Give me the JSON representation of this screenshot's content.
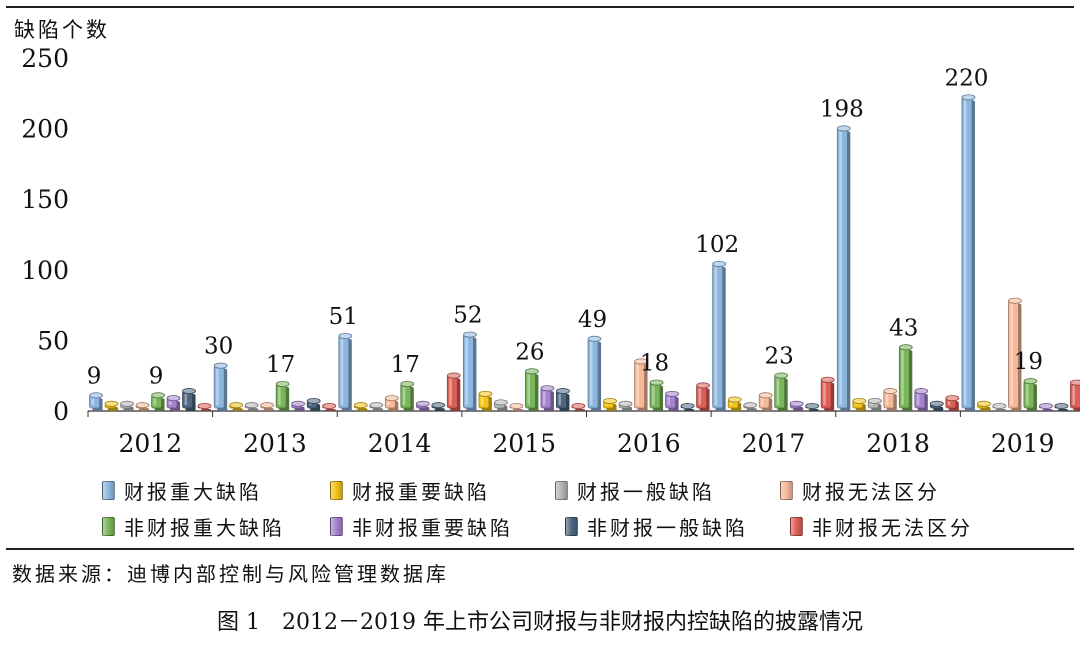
{
  "chart_data": {
    "type": "bar",
    "ylabel": "缺陷个数",
    "ylim": [
      0,
      250
    ],
    "yticks": [
      0,
      50,
      100,
      150,
      200,
      250
    ],
    "categories": [
      "2012",
      "2013",
      "2014",
      "2015",
      "2016",
      "2017",
      "2018",
      "2019"
    ],
    "series": [
      {
        "name": "财报重大缺陷",
        "color": "#8db6df",
        "values": [
          9,
          30,
          51,
          52,
          49,
          102,
          198,
          220
        ]
      },
      {
        "name": "财报重要缺陷",
        "color": "#f2c318",
        "values": [
          3,
          2,
          2,
          10,
          5,
          6,
          5,
          3
        ]
      },
      {
        "name": "财报一般缺陷",
        "color": "#b5b5b5",
        "values": [
          3,
          2,
          2,
          4,
          3,
          2,
          5,
          1
        ]
      },
      {
        "name": "财报无法区分",
        "color": "#f5b898",
        "values": [
          2,
          2,
          7,
          1,
          33,
          9,
          12,
          76
        ]
      },
      {
        "name": "非财报重大缺陷",
        "color": "#79b55a",
        "values": [
          9,
          17,
          17,
          26,
          18,
          23,
          43,
          19
        ]
      },
      {
        "name": "非财报重要缺陷",
        "color": "#a482cc",
        "values": [
          7,
          3,
          3,
          14,
          10,
          3,
          12,
          1
        ]
      },
      {
        "name": "非财报一般缺陷",
        "color": "#4f6680",
        "values": [
          12,
          5,
          2,
          12,
          1,
          1,
          3,
          1
        ]
      },
      {
        "name": "非财报无法区分",
        "color": "#dc5f57",
        "values": [
          1,
          1,
          23,
          1,
          16,
          20,
          7,
          18
        ]
      }
    ],
    "data_labels": [
      {
        "category": "2012",
        "series": "财报重大缺陷",
        "text": "9"
      },
      {
        "category": "2012",
        "series": "非财报重大缺陷",
        "text": "9"
      },
      {
        "category": "2013",
        "series": "财报重大缺陷",
        "text": "30"
      },
      {
        "category": "2013",
        "series": "非财报重大缺陷",
        "text": "17"
      },
      {
        "category": "2014",
        "series": "财报重大缺陷",
        "text": "51"
      },
      {
        "category": "2014",
        "series": "非财报重大缺陷",
        "text": "17"
      },
      {
        "category": "2015",
        "series": "财报重大缺陷",
        "text": "52"
      },
      {
        "category": "2015",
        "series": "非财报重大缺陷",
        "text": "26"
      },
      {
        "category": "2016",
        "series": "财报重大缺陷",
        "text": "49"
      },
      {
        "category": "2016",
        "series": "非财报重大缺陷",
        "text": "18"
      },
      {
        "category": "2017",
        "series": "财报重大缺陷",
        "text": "102"
      },
      {
        "category": "2017",
        "series": "非财报重大缺陷",
        "text": "23"
      },
      {
        "category": "2018",
        "series": "财报重大缺陷",
        "text": "198"
      },
      {
        "category": "2018",
        "series": "非财报重大缺陷",
        "text": "43"
      },
      {
        "category": "2019",
        "series": "财报重大缺陷",
        "text": "220"
      },
      {
        "category": "2019",
        "series": "非财报重大缺陷",
        "text": "19"
      }
    ],
    "legend_position": "bottom",
    "grid": false
  },
  "source": "数据来源：迪博内部控制与风险管理数据库",
  "caption": {
    "number": "图 1",
    "text": "2012－2019 年上市公司财报与非财报内控缺陷的披露情况"
  }
}
